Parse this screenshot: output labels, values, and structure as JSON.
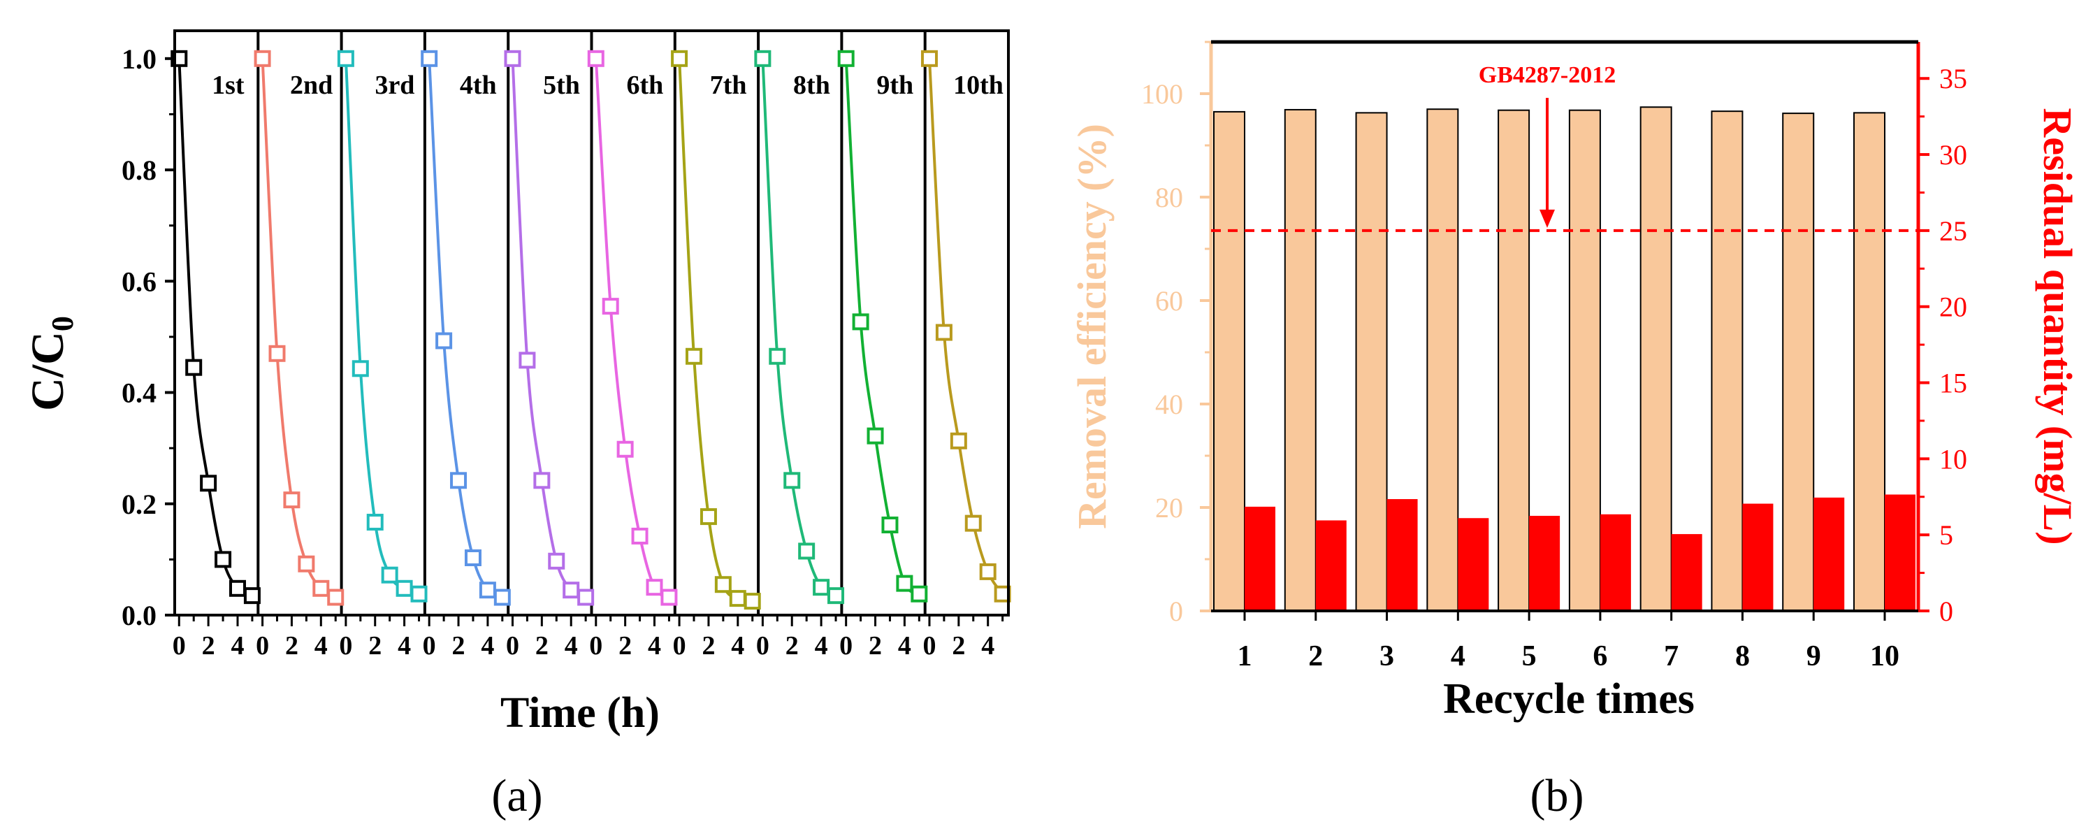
{
  "panel_a": {
    "label": "(a)",
    "ylabel_main": "C/C",
    "ylabel_sub": "0",
    "xlabel": "Time (h)",
    "yticks": [
      "0.0",
      "0.2",
      "0.4",
      "0.6",
      "0.8",
      "1.0"
    ],
    "xtick_labels": [
      "0",
      "2",
      "4"
    ]
  },
  "panel_b": {
    "label": "(b)",
    "ylabel_left": "Removal efficiency (%)",
    "ylabel_right": "Residual quantity (mg/L)",
    "xlabel": "Recycle times",
    "annotation": "GB4287-2012",
    "left_ticks": [
      "0",
      "20",
      "40",
      "60",
      "80",
      "100"
    ],
    "right_ticks": [
      "0",
      "5",
      "10",
      "15",
      "20",
      "25",
      "30",
      "35"
    ],
    "categories": [
      "1",
      "2",
      "3",
      "4",
      "5",
      "6",
      "7",
      "8",
      "9",
      "10"
    ],
    "colors": {
      "removal": "#f9c89b",
      "residual": "#ff0000",
      "axis_left": "#f9c89b",
      "axis_right": "#ff0000"
    }
  },
  "chart_data": [
    {
      "type": "line",
      "title": "",
      "xlabel": "Time (h)",
      "ylabel": "C/C0",
      "ylim": [
        0,
        1.05
      ],
      "xlim_per_cycle": [
        -0.3,
        5.4
      ],
      "x": [
        0,
        1,
        2,
        3,
        4,
        5
      ],
      "series": [
        {
          "name": "1st",
          "color": "#000000",
          "values": [
            1.0,
            0.445,
            0.237,
            0.1,
            0.048,
            0.035
          ]
        },
        {
          "name": "2nd",
          "color": "#f07a6c",
          "values": [
            1.0,
            0.47,
            0.207,
            0.092,
            0.048,
            0.032
          ]
        },
        {
          "name": "3rd",
          "color": "#22bcbc",
          "values": [
            1.0,
            0.443,
            0.167,
            0.072,
            0.048,
            0.038
          ]
        },
        {
          "name": "4th",
          "color": "#5b93e6",
          "values": [
            1.0,
            0.493,
            0.242,
            0.103,
            0.045,
            0.032
          ]
        },
        {
          "name": "5th",
          "color": "#b46ee8",
          "values": [
            1.0,
            0.458,
            0.242,
            0.097,
            0.045,
            0.032
          ]
        },
        {
          "name": "6th",
          "color": "#e865e2",
          "values": [
            1.0,
            0.555,
            0.298,
            0.142,
            0.05,
            0.032
          ]
        },
        {
          "name": "7th",
          "color": "#a5a316",
          "values": [
            1.0,
            0.465,
            0.177,
            0.055,
            0.03,
            0.025
          ]
        },
        {
          "name": "8th",
          "color": "#1fb978",
          "values": [
            1.0,
            0.465,
            0.242,
            0.115,
            0.05,
            0.035
          ]
        },
        {
          "name": "9th",
          "color": "#12b133",
          "values": [
            1.0,
            0.527,
            0.322,
            0.162,
            0.057,
            0.038
          ]
        },
        {
          "name": "10th",
          "color": "#b99a1e",
          "values": [
            1.0,
            0.508,
            0.313,
            0.165,
            0.078,
            0.038
          ]
        }
      ]
    },
    {
      "type": "bar",
      "title": "",
      "xlabel": "Recycle times",
      "categories": [
        "1",
        "2",
        "3",
        "4",
        "5",
        "6",
        "7",
        "8",
        "9",
        "10"
      ],
      "series": [
        {
          "name": "Removal efficiency (%)",
          "axis": "left",
          "color": "#f9c89b",
          "values": [
            96.5,
            96.9,
            96.3,
            97.0,
            96.8,
            96.8,
            97.4,
            96.6,
            96.2,
            96.3
          ]
        },
        {
          "name": "Residual quantity (mg/L)",
          "axis": "right",
          "color": "#ff0000",
          "values": [
            6.85,
            5.95,
            7.35,
            6.1,
            6.25,
            6.35,
            5.05,
            7.05,
            7.45,
            7.65
          ]
        }
      ],
      "ylim_left": [
        0,
        110
      ],
      "ylim_right": [
        0,
        37.4
      ],
      "threshold": {
        "value": 25,
        "axis": "right",
        "label": "GB4287-2012",
        "style": "dashed",
        "color": "#ff0000"
      }
    }
  ]
}
